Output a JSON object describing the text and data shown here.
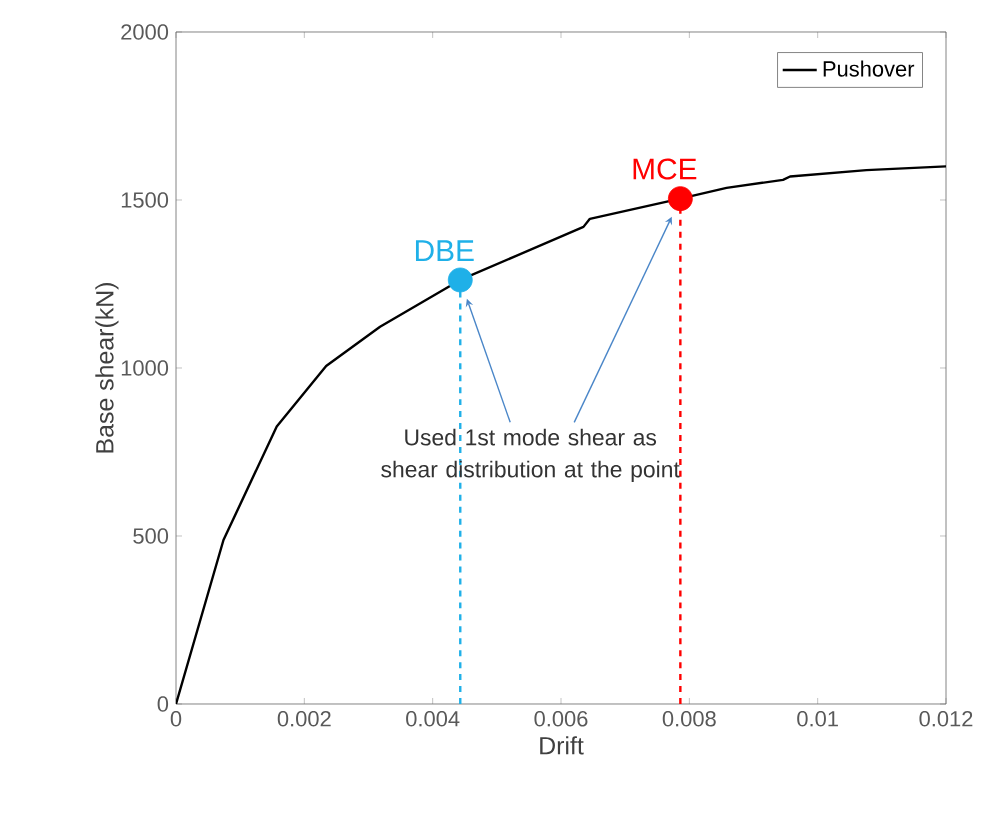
{
  "chart_data": {
    "type": "line",
    "xlabel": "Drift",
    "ylabel": "Base shear(kN)",
    "xlim": [
      0,
      0.012
    ],
    "ylim": [
      0,
      2000
    ],
    "xticks": [
      0,
      0.002,
      0.004,
      0.006,
      0.008,
      0.01,
      0.012
    ],
    "yticks": [
      0,
      500,
      1000,
      1500,
      2000
    ],
    "legend": "top right",
    "grid": false,
    "series": [
      {
        "name": "Pushover",
        "color": "#000000",
        "line_style": "solid",
        "x": [
          0,
          0.00074,
          0.00157,
          0.00234,
          0.00318,
          0.00443,
          0.00635,
          0.00645,
          0.00786,
          0.00858,
          0.00946,
          0.00957,
          0.01076,
          0.012
        ],
        "values": [
          0,
          488,
          826,
          1006,
          1123,
          1262,
          1420,
          1444,
          1504,
          1536,
          1560,
          1570,
          1589,
          1600
        ]
      },
      {
        "color": "#1fb0e8",
        "line_style": "dashed",
        "x": [
          0.00443,
          0.00443
        ],
        "values": [
          0,
          1262
        ]
      },
      {
        "color": "#ff0000",
        "line_style": "dashed",
        "x": [
          0.00786,
          0.00786
        ],
        "values": [
          0,
          1504
        ]
      },
      {
        "name": "DBE",
        "type": "scatter",
        "marker": "circle",
        "color": "#1fb0e8",
        "x": [
          0.00443
        ],
        "values": [
          1262
        ]
      },
      {
        "name": "MCE",
        "type": "scatter",
        "marker": "circle",
        "color": "#ff0000",
        "x": [
          0.00786
        ],
        "values": [
          1504
        ]
      }
    ],
    "annotations": [
      "Used 1st mode shear as shear distribution at the point"
    ]
  }
}
